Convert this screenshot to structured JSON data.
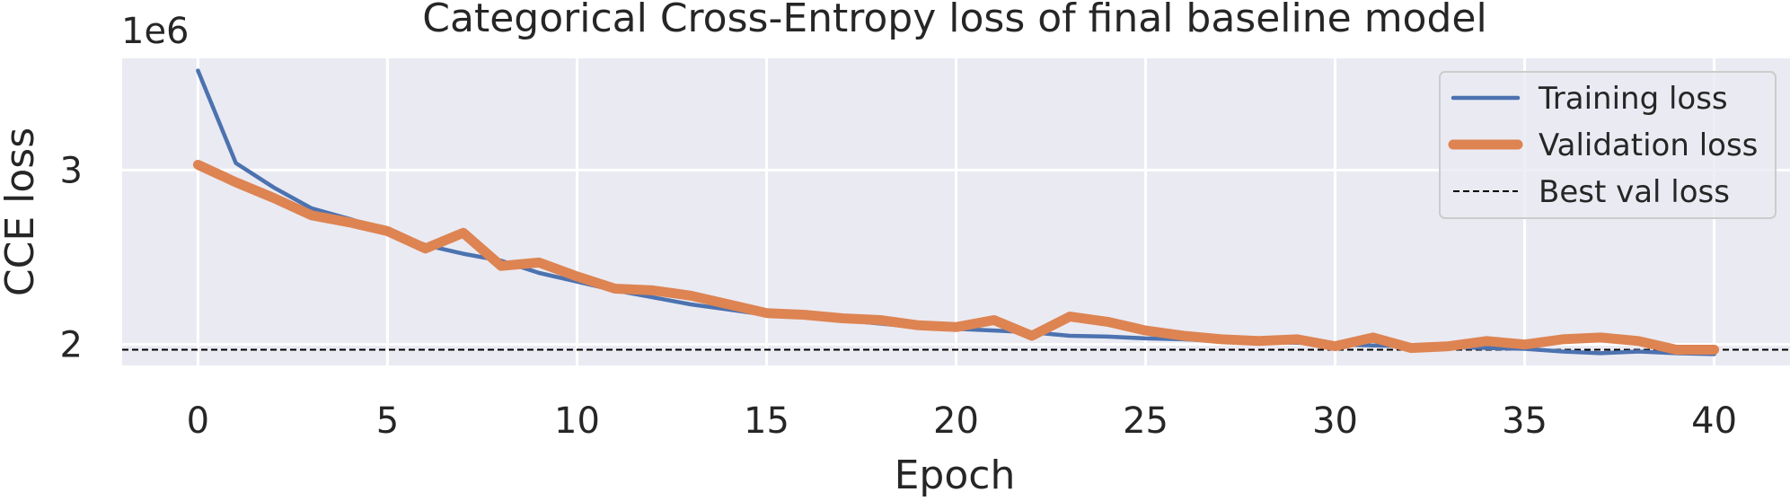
{
  "chart_data": {
    "type": "line",
    "title": "Categorical Cross-Entropy loss of final baseline model",
    "xlabel": "Epoch",
    "ylabel": "CCE loss",
    "y_offset_label": "1e6",
    "y_scale_factor": 1000000,
    "xlim": [
      -2,
      42
    ],
    "ylim": [
      1880000,
      3640000
    ],
    "xticks": [
      0,
      5,
      10,
      15,
      20,
      25,
      30,
      35,
      40
    ],
    "yticks": [
      2000000,
      3000000
    ],
    "ytick_labels": [
      "2",
      "3"
    ],
    "grid": true,
    "legend_position": "upper right",
    "x": [
      0,
      1,
      2,
      3,
      4,
      5,
      6,
      7,
      8,
      9,
      10,
      11,
      12,
      13,
      14,
      15,
      16,
      17,
      18,
      19,
      20,
      21,
      22,
      23,
      24,
      25,
      26,
      27,
      28,
      29,
      30,
      31,
      32,
      33,
      34,
      35,
      36,
      37,
      38,
      39,
      40
    ],
    "series": [
      {
        "name": "Training loss",
        "color": "#4c72b0",
        "values": [
          3570000,
          3040000,
          2900000,
          2780000,
          2720000,
          2650000,
          2570000,
          2520000,
          2480000,
          2410000,
          2360000,
          2310000,
          2270000,
          2230000,
          2200000,
          2170000,
          2160000,
          2140000,
          2120000,
          2100000,
          2090000,
          2080000,
          2070000,
          2050000,
          2045000,
          2035000,
          2030000,
          2020000,
          2015000,
          2010000,
          2000000,
          1995000,
          1990000,
          1985000,
          1980000,
          1975000,
          1960000,
          1950000,
          1960000,
          1950000,
          1945000
        ]
      },
      {
        "name": "Validation loss",
        "color": "#dd8452",
        "values": [
          3030000,
          2930000,
          2840000,
          2740000,
          2700000,
          2650000,
          2550000,
          2640000,
          2450000,
          2470000,
          2390000,
          2320000,
          2310000,
          2280000,
          2230000,
          2180000,
          2170000,
          2150000,
          2140000,
          2110000,
          2100000,
          2140000,
          2050000,
          2160000,
          2130000,
          2080000,
          2050000,
          2030000,
          2020000,
          2030000,
          1990000,
          2040000,
          1980000,
          1990000,
          2020000,
          2000000,
          2030000,
          2040000,
          2020000,
          1970000,
          1970000
        ]
      }
    ],
    "reference_lines": [
      {
        "name": "Best val loss",
        "y": 1970000,
        "color": "#000000",
        "style": "dashed"
      }
    ]
  }
}
